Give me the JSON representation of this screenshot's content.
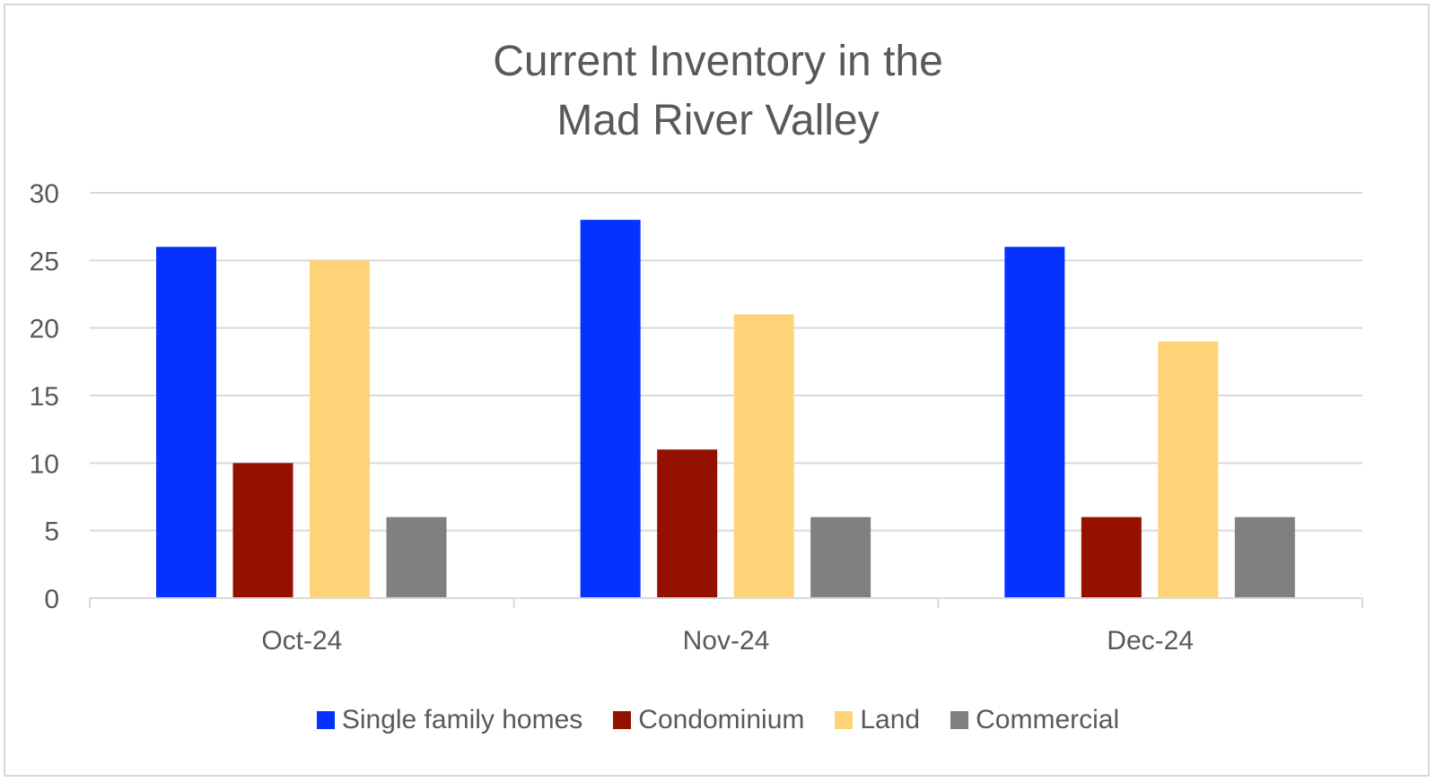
{
  "chart_data": {
    "type": "bar",
    "title": "Current Inventory in the\nMad River Valley",
    "categories": [
      "Oct-24",
      "Nov-24",
      "Dec-24"
    ],
    "series": [
      {
        "name": "Single family homes",
        "values": [
          26,
          28,
          26
        ],
        "color": "#0433ff"
      },
      {
        "name": "Condominium",
        "values": [
          10,
          11,
          6
        ],
        "color": "#941100"
      },
      {
        "name": "Land",
        "values": [
          25,
          21,
          19
        ],
        "color": "#ffd479"
      },
      {
        "name": "Commercial",
        "values": [
          6,
          6,
          6
        ],
        "color": "#808080"
      }
    ],
    "ylim": [
      0,
      30
    ],
    "yticks": [
      0,
      5,
      10,
      15,
      20,
      25,
      30
    ],
    "xlabel": "",
    "ylabel": "",
    "grid": true,
    "legend_position": "bottom"
  }
}
